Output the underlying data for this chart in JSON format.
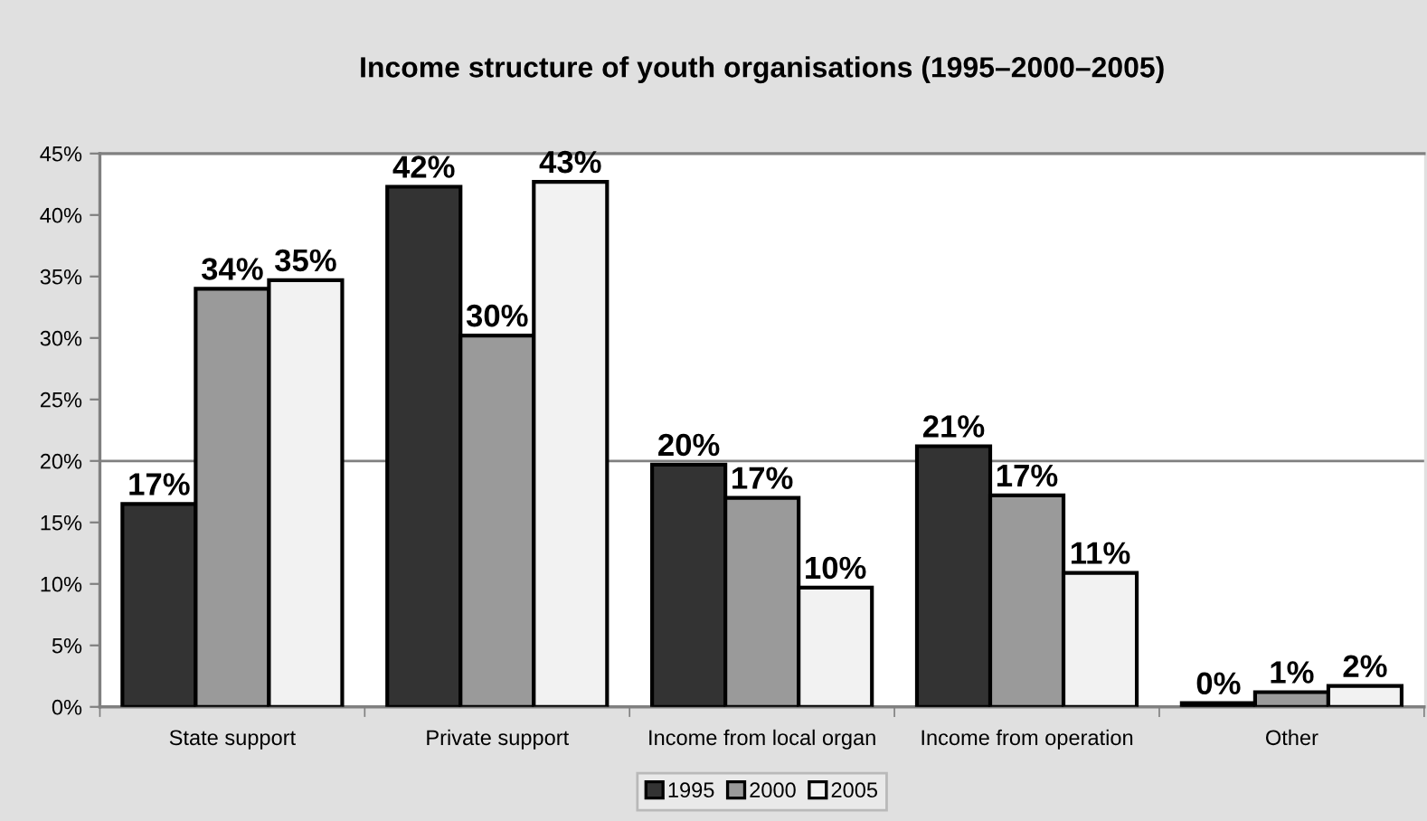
{
  "chart_data": {
    "type": "bar",
    "title": "Income structure of youth organisations (1995–2000–2005)",
    "categories": [
      "State support",
      "Private support",
      "Income from local organ",
      "Income from operation",
      "Other"
    ],
    "series": [
      {
        "name": "1995",
        "color": "#333333",
        "values": [
          16.5,
          42.3,
          19.7,
          21.2,
          0.3
        ],
        "value_labels": [
          "17%",
          "42%",
          "20%",
          "21%",
          "0%"
        ]
      },
      {
        "name": "2000",
        "color": "#9a9a9a",
        "values": [
          34.0,
          30.2,
          17.0,
          17.2,
          1.2
        ],
        "value_labels": [
          "34%",
          "30%",
          "17%",
          "17%",
          "1%"
        ]
      },
      {
        "name": "2005",
        "color": "#f2f2f2",
        "values": [
          34.7,
          42.7,
          9.7,
          10.9,
          1.7
        ],
        "value_labels": [
          "35%",
          "43%",
          "10%",
          "11%",
          "2%"
        ]
      }
    ],
    "ylim": [
      0,
      45
    ],
    "yticks": [
      {
        "value": 0,
        "label": "0%"
      },
      {
        "value": 5,
        "label": "5%"
      },
      {
        "value": 10,
        "label": "10%"
      },
      {
        "value": 15,
        "label": "15%"
      },
      {
        "value": 20,
        "label": "20%"
      },
      {
        "value": 25,
        "label": "25%"
      },
      {
        "value": 30,
        "label": "30%"
      },
      {
        "value": 35,
        "label": "35%"
      },
      {
        "value": 40,
        "label": "40%"
      },
      {
        "value": 45,
        "label": "45%"
      }
    ],
    "ref_lines": [
      {
        "axis": "y",
        "value": 20,
        "color": "#808080"
      }
    ],
    "legend": "bottom"
  }
}
